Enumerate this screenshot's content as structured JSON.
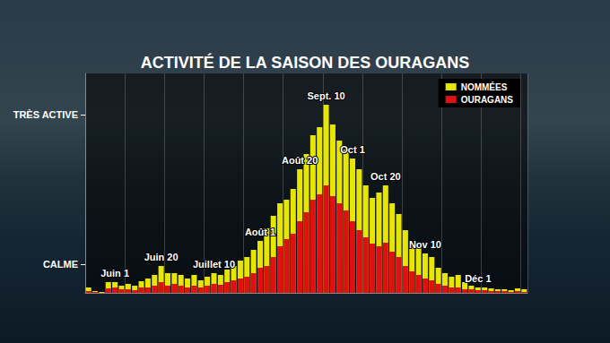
{
  "chart_data": {
    "type": "bar",
    "title": "ACTIVITÉ DE LA SAISON DES OURAGANS",
    "categories": [
      null,
      null,
      null,
      null,
      "Juin 1",
      null,
      null,
      null,
      null,
      null,
      null,
      "Juin 20",
      null,
      null,
      null,
      null,
      null,
      null,
      null,
      "Juillet 10",
      null,
      null,
      null,
      null,
      null,
      null,
      "Août 1",
      null,
      null,
      null,
      null,
      null,
      "Août 20",
      null,
      null,
      null,
      "Sept. 10",
      null,
      null,
      null,
      "Oct 1",
      null,
      null,
      null,
      null,
      "Oct 20",
      null,
      null,
      null,
      null,
      null,
      "Nov 10",
      null,
      null,
      null,
      null,
      null,
      null,
      null,
      "Déc 1",
      null,
      null,
      null,
      null,
      null,
      null,
      null
    ],
    "series": [
      {
        "name": "NOMMÉES",
        "color": "#e6e600",
        "values": [
          6,
          2,
          1,
          12,
          12,
          8,
          10,
          8,
          13,
          16,
          20,
          30,
          22,
          22,
          20,
          16,
          20,
          14,
          18,
          22,
          20,
          26,
          30,
          36,
          40,
          48,
          58,
          72,
          86,
          100,
          104,
          116,
          138,
          155,
          176,
          185,
          210,
          188,
          170,
          160,
          150,
          138,
          120,
          106,
          112,
          120,
          100,
          88,
          70,
          56,
          50,
          44,
          40,
          28,
          22,
          18,
          20,
          12,
          8,
          6,
          6,
          5,
          4,
          4,
          3,
          5,
          4
        ]
      },
      {
        "name": "OURAGANS",
        "color": "#e01010",
        "values": [
          2,
          1,
          0,
          5,
          6,
          4,
          4,
          3,
          6,
          6,
          8,
          12,
          8,
          10,
          8,
          6,
          8,
          6,
          8,
          10,
          9,
          12,
          14,
          16,
          18,
          22,
          28,
          30,
          40,
          52,
          60,
          66,
          80,
          90,
          104,
          110,
          120,
          108,
          100,
          92,
          80,
          70,
          62,
          55,
          52,
          56,
          46,
          40,
          30,
          24,
          20,
          16,
          14,
          10,
          8,
          6,
          6,
          4,
          4,
          3,
          3,
          2,
          2,
          2,
          1,
          2,
          1
        ]
      }
    ],
    "ylim": [
      0,
      245
    ],
    "yticks": [
      {
        "value": 32,
        "label": "CALME"
      },
      {
        "value": 199,
        "label": "TRÈS ACTIVE"
      }
    ],
    "tick_labels": "y",
    "grid": true,
    "legend": "upper right"
  }
}
